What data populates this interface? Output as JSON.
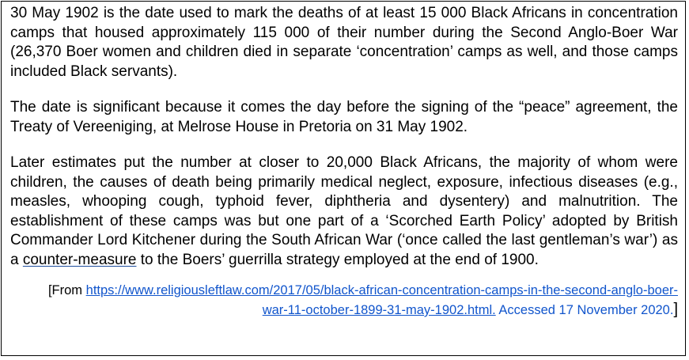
{
  "paragraphs": {
    "p1": "30 May 1902 is the date used to mark the deaths of at least 15 000 Black Africans in concentration camps that housed approximately 115 000 of their number during the Second Anglo-Boer War (26,370 Boer women and children died in separate ‘concentration’ camps as well, and those camps included Black servants).",
    "p2": "The date is significant because it comes the day before the signing of the “peace” agreement, the Treaty of Vereeniging, at Melrose House in Pretoria on 31 May 1902.",
    "p3_before": "Later estimates put the number at closer to 20,000 Black Africans, the majority of whom were children, the causes of death being primarily medical neglect, exposure, infectious diseases (e.g., measles, whooping cough, typhoid fever, diphtheria and dysentery) and malnutrition. The establishment of these camps was but one part of a ‘Scorched Earth Policy’ adopted by British Commander Lord Kitchener during the South African War (‘once called the last gentleman’s war’) as a ",
    "p3_underlined": "counter-measure",
    "p3_after": " to the Boers’ guerrilla strategy employed at the end of 1900."
  },
  "source": {
    "open_bracket": "[From ",
    "url": "https://www.religiousleftlaw.com/2017/05/black-african-concentration-camps-in-the-second-anglo-boer-war-11-october-1899-31-may-1902.html.",
    "accessed": " Accessed 17 November 2020.",
    "close_bracket": "]"
  },
  "colors": {
    "text": "#000000",
    "link": "#1155cc",
    "border": "#000000"
  }
}
